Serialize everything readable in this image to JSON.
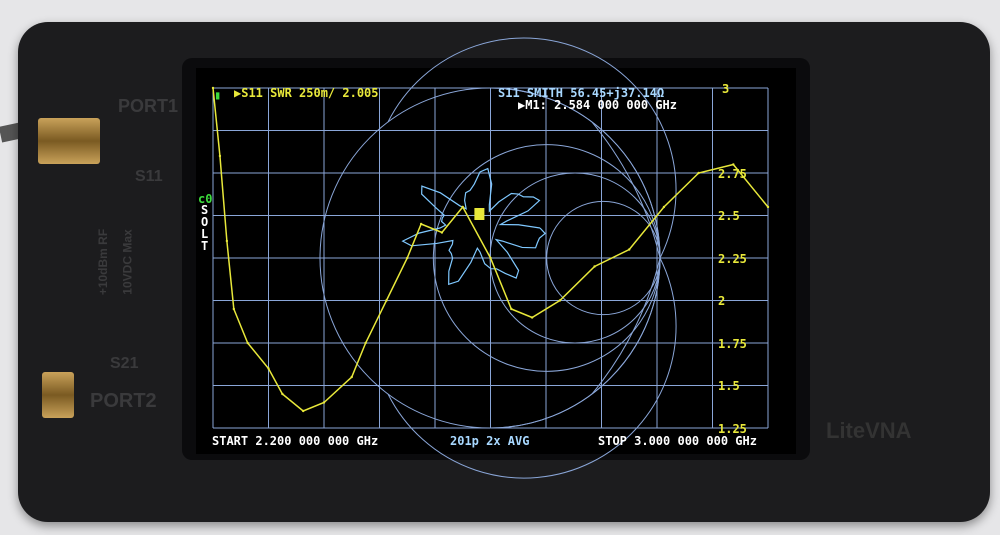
{
  "device": {
    "brand": "LiteVNA",
    "port1": "PORT1",
    "port2": "PORT2",
    "s11": "S11",
    "s21": "S21",
    "rating1": "+10dBm RF",
    "rating2": "10VDC Max"
  },
  "screen": {
    "trace1": "▶S11 SWR 250m/ 2.005",
    "trace2": "S11 SMITH  56.45+j37.14Ω",
    "marker": "▶M1: 2.584 000 000 GHz",
    "cal": "c0",
    "cal_type": [
      "S",
      "O",
      "L",
      "T"
    ],
    "start": "START 2.200 000 000 GHz",
    "points": "201p  2x AVG",
    "stop": "STOP 3.000 000 000 GHz",
    "marker_label": "1",
    "colors": {
      "swr": "#e8e83a",
      "smith": "#7fc8ff",
      "grid": "#8aa6d8",
      "battery": "#3cdc3c"
    }
  },
  "chart_data": {
    "type": "line",
    "xlabel": "",
    "ylabel": "SWR",
    "xlim": [
      2.2,
      3.0
    ],
    "ylim": [
      1,
      3
    ],
    "y_ticks": [
      "3",
      "2.75",
      "2.5",
      "2.25",
      "2",
      "1.75",
      "1.5",
      "1.25"
    ],
    "x": [
      2.2,
      2.21,
      2.22,
      2.23,
      2.25,
      2.28,
      2.3,
      2.33,
      2.36,
      2.4,
      2.42,
      2.45,
      2.48,
      2.5,
      2.53,
      2.56,
      2.6,
      2.63,
      2.66,
      2.7,
      2.75,
      2.8,
      2.85,
      2.9,
      2.95,
      3.0
    ],
    "values": [
      3.0,
      2.6,
      2.1,
      1.7,
      1.5,
      1.35,
      1.2,
      1.1,
      1.15,
      1.3,
      1.5,
      1.75,
      2.0,
      2.2,
      2.15,
      2.3,
      2.0,
      1.7,
      1.65,
      1.75,
      1.95,
      2.05,
      2.3,
      2.5,
      2.55,
      2.3
    ]
  }
}
